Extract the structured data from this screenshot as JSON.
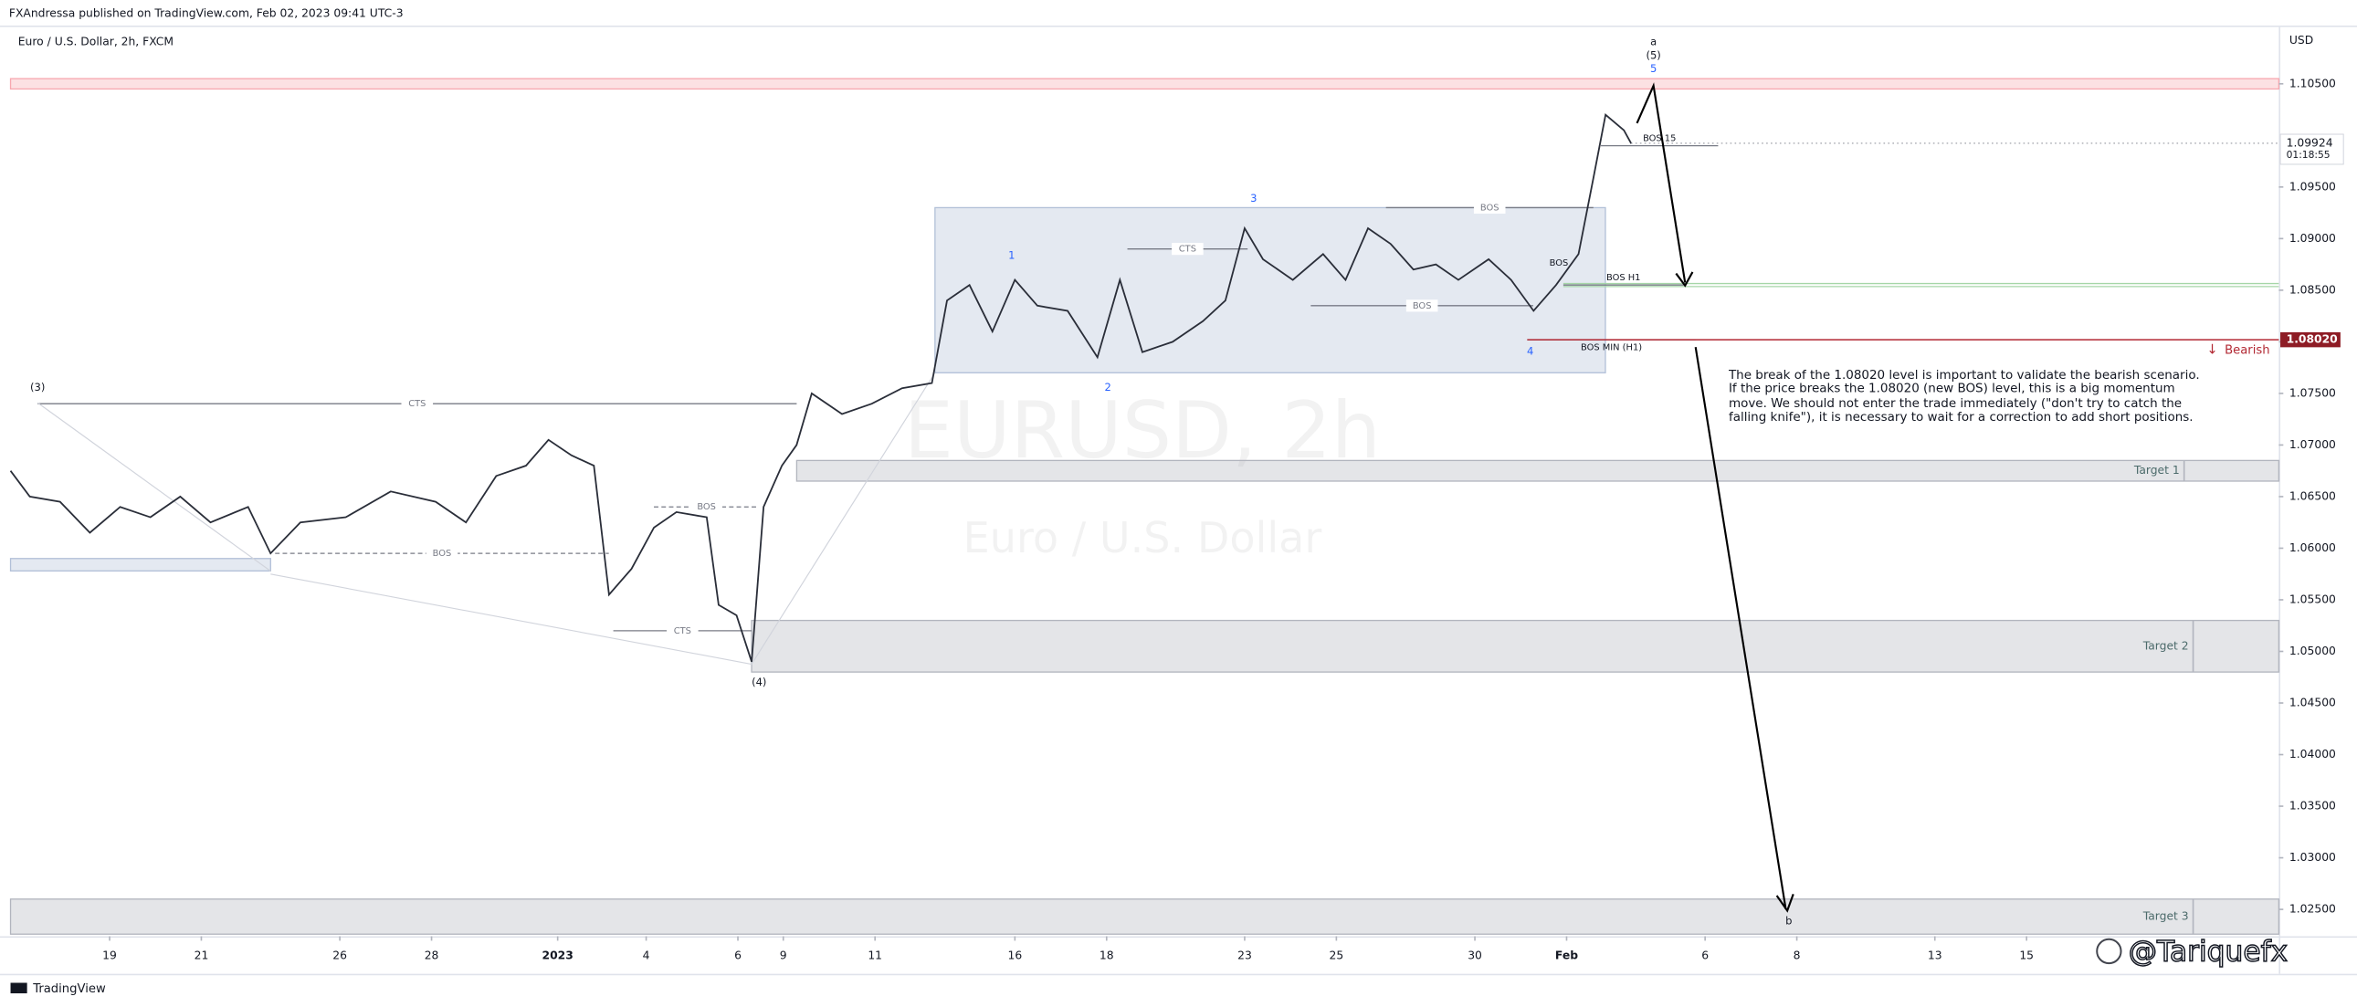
{
  "chart_data": {
    "type": "line",
    "header": "FXAndressa published on TradingView.com, Feb 02, 2023 09:41 UTC-3",
    "title": "Euro / U.S. Dollar, 2h, FXCM",
    "y_unit": "USD",
    "watermark": "EURUSD, 2h",
    "watermark_subtitle": "Euro / U.S. Dollar",
    "credit": "@Tariquefx",
    "footer": "TradingView",
    "grid": false,
    "ylim": [
      1.0224,
      1.1105
    ],
    "yticks": [
      {
        "value": 1.025,
        "label": "1.02500"
      },
      {
        "value": 1.03,
        "label": "1.03000"
      },
      {
        "value": 1.035,
        "label": "1.03500"
      },
      {
        "value": 1.04,
        "label": "1.04000"
      },
      {
        "value": 1.045,
        "label": "1.04500"
      },
      {
        "value": 1.05,
        "label": "1.05000"
      },
      {
        "value": 1.055,
        "label": "1.05500"
      },
      {
        "value": 1.06,
        "label": "1.06000"
      },
      {
        "value": 1.065,
        "label": "1.06500"
      },
      {
        "value": 1.07,
        "label": "1.07000"
      },
      {
        "value": 1.075,
        "label": "1.07500"
      },
      {
        "value": 1.08,
        "label": "1.08000"
      },
      {
        "value": 1.085,
        "label": "1.08500"
      },
      {
        "value": 1.09,
        "label": "1.09000"
      },
      {
        "value": 1.095,
        "label": "1.09500"
      },
      {
        "value": 1.105,
        "label": "1.10500"
      }
    ],
    "xlim": [
      -2.16,
      47.3
    ],
    "xticks": [
      {
        "value": 0,
        "label": "19"
      },
      {
        "value": 2,
        "label": "21"
      },
      {
        "value": 5.02,
        "label": "26"
      },
      {
        "value": 7.02,
        "label": "28"
      },
      {
        "value": 9.77,
        "label": "2023"
      },
      {
        "value": 11.7,
        "label": "4"
      },
      {
        "value": 13.7,
        "label": "6"
      },
      {
        "value": 14.69,
        "label": "9"
      },
      {
        "value": 16.69,
        "label": "11"
      },
      {
        "value": 19.74,
        "label": "16"
      },
      {
        "value": 21.74,
        "label": "18"
      },
      {
        "value": 24.75,
        "label": "23"
      },
      {
        "value": 26.75,
        "label": "25"
      },
      {
        "value": 29.77,
        "label": "30"
      },
      {
        "value": 31.77,
        "label": "Feb"
      },
      {
        "value": 34.79,
        "label": "6"
      },
      {
        "value": 36.79,
        "label": "8"
      },
      {
        "value": 39.8,
        "label": "13"
      },
      {
        "value": 41.8,
        "label": "15"
      }
    ],
    "series": [
      {
        "color": "#2a2e39",
        "x": [
          -2.16,
          -1.74,
          -1.08,
          -0.43,
          0.23,
          0.89,
          1.54,
          2.2,
          3.02,
          3.51,
          4.16,
          5.15,
          6.13,
          7.11,
          7.77,
          8.43,
          9.08,
          9.57,
          10.07,
          10.56,
          10.89,
          11.38,
          11.87,
          12.36,
          13.02,
          13.28,
          13.67,
          14.0,
          14.26,
          14.66,
          14.98,
          15.31,
          15.97,
          16.62,
          17.28,
          17.93,
          18.26,
          18.75,
          19.25,
          19.74,
          20.23,
          20.89,
          21.54,
          22.03,
          22.52,
          23.18,
          23.84,
          24.33,
          24.75,
          25.15,
          25.8,
          26.46,
          26.95,
          27.44,
          27.93,
          28.43,
          28.92,
          29.41,
          30.07,
          30.56,
          31.05,
          31.54,
          32.03,
          32.36,
          32.62,
          33.02,
          33.18
        ],
        "values": [
          1.0675,
          1.065,
          1.0645,
          1.0615,
          1.064,
          1.063,
          1.065,
          1.0625,
          1.064,
          1.0595,
          1.0625,
          1.063,
          1.0655,
          1.0645,
          1.0625,
          1.067,
          1.068,
          1.0705,
          1.069,
          1.068,
          1.0555,
          1.058,
          1.062,
          1.0635,
          1.063,
          1.0545,
          1.0535,
          1.049,
          1.064,
          1.068,
          1.07,
          1.075,
          1.073,
          1.074,
          1.0755,
          1.076,
          1.084,
          1.0855,
          1.081,
          1.086,
          1.0835,
          1.083,
          1.0785,
          1.086,
          1.079,
          1.08,
          1.082,
          1.084,
          1.091,
          1.088,
          1.086,
          1.0885,
          1.086,
          1.091,
          1.0895,
          1.087,
          1.0875,
          1.086,
          1.088,
          1.086,
          1.083,
          1.0855,
          1.0885,
          1.096,
          1.102,
          1.1005,
          1.0992
        ]
      }
    ],
    "zones": [
      {
        "name": "Target 1",
        "range": [
          1.0665,
          1.0685
        ],
        "color": "#b2b5be"
      },
      {
        "name": "Target 2",
        "range": [
          1.048,
          1.053
        ],
        "color": "#b2b5be"
      },
      {
        "name": "Target 3",
        "range": [
          1.0226,
          1.026
        ],
        "color": "#b2b5be"
      },
      {
        "range": [
          1.077,
          1.093
        ],
        "color": "#b2c0d8"
      },
      {
        "range": [
          1.0578,
          1.059
        ],
        "color": "#b2c0d8"
      },
      {
        "range": [
          1.1045,
          1.1055
        ],
        "color": "#f7a8b0"
      }
    ],
    "levels": [
      {
        "label": "CTS",
        "value": 1.074
      },
      {
        "label": "BOS",
        "value": 1.0595
      },
      {
        "label": "BOS",
        "value": 1.064
      },
      {
        "label": "CTS",
        "value": 1.052
      },
      {
        "label": "CTS",
        "value": 1.089
      },
      {
        "label": "BOS",
        "value": 1.093
      },
      {
        "label": "BOS",
        "value": 1.0835
      },
      {
        "label": "BOS H1",
        "value": 1.0855
      },
      {
        "label": "BOS MIN (H1)",
        "value": 1.0802
      },
      {
        "label": "BOS 15",
        "value": 1.099
      }
    ],
    "wave_labels": [
      "(3)",
      "(4)",
      "1",
      "2",
      "3",
      "4",
      "a",
      "(5)",
      "5",
      "b",
      "BOS"
    ],
    "bearish_level": {
      "value": 1.0802,
      "label": "1.08020"
    },
    "bearish_text": "Bearish",
    "last_price": 1.09924,
    "countdown": "01:18:55",
    "note": "The break of the 1.08020 level is important to validate the bearish scenario. If the price breaks the 1.08020 (new BOS) level, this is a big momentum move. We should not enter the trade immediately (\"don't try to catch the falling knife\"), it is necessary to wait for a correction to add short positions."
  }
}
